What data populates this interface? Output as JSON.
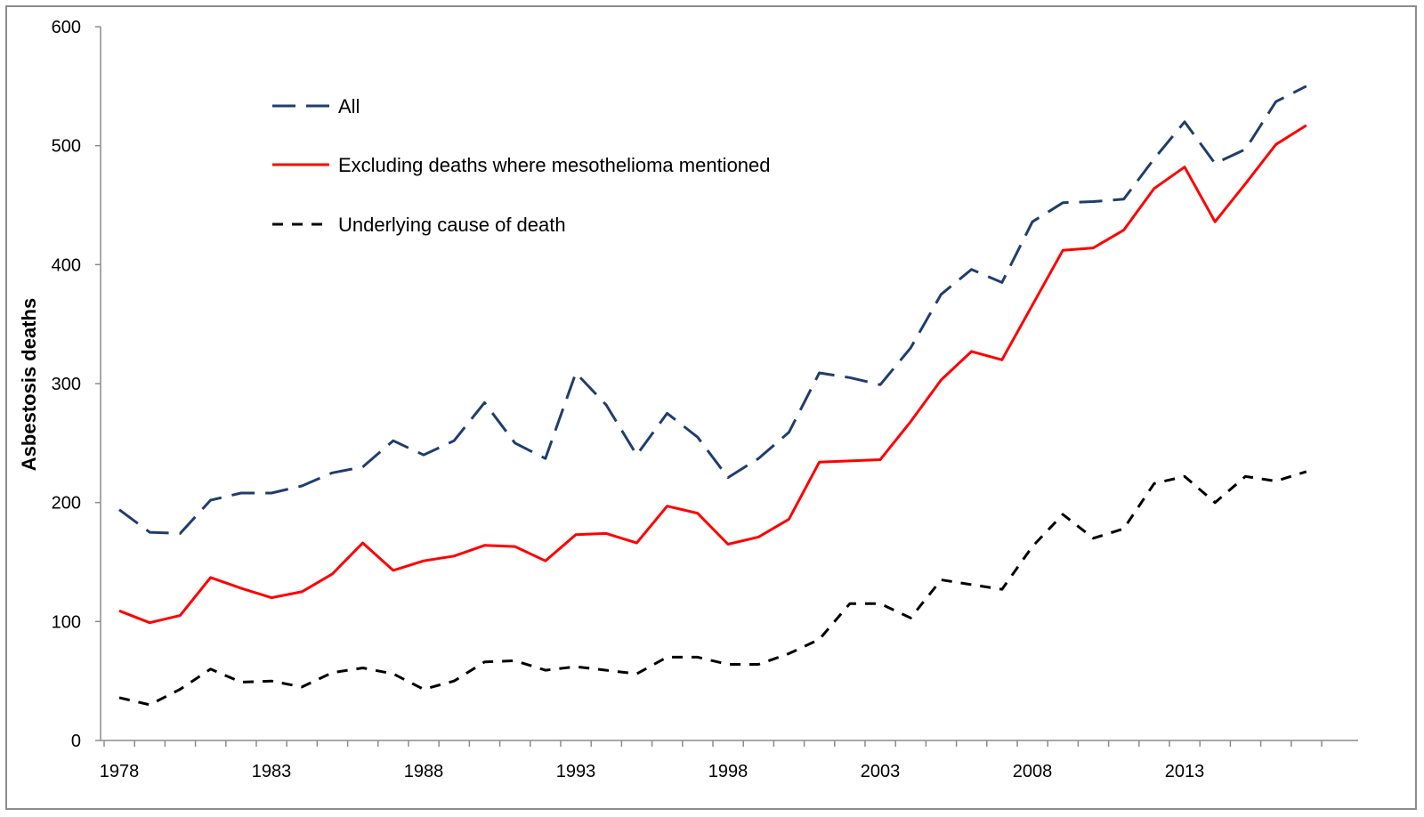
{
  "chart_data": {
    "type": "line",
    "title": "",
    "xlabel": "",
    "ylabel": "Asbestosis deaths",
    "ylim": [
      0,
      600
    ],
    "yticks": [
      0,
      100,
      200,
      300,
      400,
      500,
      600
    ],
    "xtick_labels": [
      "1978",
      "1983",
      "1988",
      "1993",
      "1998",
      "2003",
      "2008",
      "2013"
    ],
    "x": [
      1978,
      1979,
      1980,
      1981,
      1982,
      1983,
      1984,
      1985,
      1986,
      1987,
      1988,
      1989,
      1990,
      1991,
      1992,
      1993,
      1994,
      1995,
      1996,
      1997,
      1998,
      1999,
      2000,
      2001,
      2002,
      2003,
      2004,
      2005,
      2006,
      2007,
      2008,
      2009,
      2010,
      2011,
      2012,
      2013,
      2014,
      2015,
      2016,
      2017
    ],
    "grid": false,
    "legend_position": "top-left",
    "series": [
      {
        "name": "All",
        "color": "#1f3d6e",
        "dash": "long-dash",
        "values": [
          194,
          175,
          174,
          202,
          208,
          208,
          214,
          225,
          230,
          252,
          240,
          252,
          284,
          250,
          237,
          309,
          282,
          240,
          275,
          255,
          221,
          237,
          259,
          309,
          305,
          299,
          330,
          375,
          396,
          385,
          436,
          452,
          453,
          455,
          489,
          520,
          485,
          497,
          537,
          550
        ]
      },
      {
        "name": "Excluding deaths where mesothelioma mentioned",
        "color": "#ff0000",
        "dash": "solid",
        "values": [
          109,
          99,
          105,
          137,
          128,
          120,
          125,
          140,
          166,
          143,
          151,
          155,
          164,
          163,
          151,
          173,
          174,
          166,
          197,
          191,
          165,
          171,
          186,
          234,
          235,
          236,
          268,
          303,
          327,
          320,
          366,
          412,
          414,
          429,
          464,
          482,
          436,
          468,
          501,
          517
        ]
      },
      {
        "name": "Underlying cause of death",
        "color": "#000000",
        "dash": "short-dash",
        "values": [
          36,
          30,
          43,
          60,
          49,
          50,
          45,
          57,
          61,
          56,
          43,
          50,
          66,
          67,
          59,
          62,
          59,
          56,
          70,
          70,
          64,
          64,
          73,
          85,
          115,
          115,
          103,
          135,
          131,
          127,
          163,
          190,
          170,
          178,
          216,
          222,
          200,
          222,
          218,
          226
        ]
      }
    ]
  }
}
